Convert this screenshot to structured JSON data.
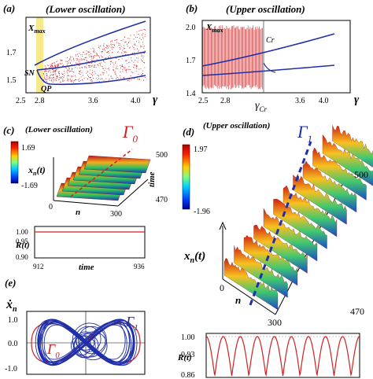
{
  "panel_a": {
    "label": "(a)",
    "title": "(Lower oscillation)",
    "x_ticks": [
      "2.5",
      "2.8",
      "3.6",
      "4.0"
    ],
    "y_ticks": [
      "1.5",
      "1.7"
    ],
    "ylabel_main": "X",
    "ylabel_sub": "max",
    "xlabel": "γ",
    "annot_sn": "SN",
    "annot_qp": "QP",
    "colors": {
      "stable": "#1f2fa8",
      "chaotic": "#d02020",
      "highlight": "#f7e98a"
    }
  },
  "panel_b": {
    "label": "(b)",
    "title": "(Upper oscillation)",
    "x_ticks": [
      "2.5",
      "2.8",
      "3.6",
      "4.0"
    ],
    "y_ticks": [
      "1.4",
      "1.7",
      "2.0"
    ],
    "ylabel_main": "X",
    "ylabel_sub": "max",
    "xlabel": "γ",
    "annot_cr": "Cr",
    "gamma_cr_main": "γ",
    "gamma_cr_sub": "Cr"
  },
  "panel_c": {
    "label": "(c)",
    "title": "(Lower oscillation)",
    "gamma_main": "Γ",
    "gamma_sub": "0",
    "colorbar_max": "1.69",
    "colorbar_min": "-1.69",
    "zlabel": "x",
    "zlabel_sub": "n",
    "zlabel_rest": "(t)",
    "n_label": "n",
    "time_label": "time",
    "tick_0": "0",
    "tick_300": "300",
    "tick_500": "500",
    "tick_470": "470",
    "r_label": "R(t)",
    "r_yticks": [
      "1.00",
      "0.95",
      "0.90"
    ],
    "r_xticks": [
      "912",
      "936"
    ],
    "r_xlabel": "time"
  },
  "panel_d": {
    "label": "(d)",
    "title": "(Upper oscillation)",
    "gamma_main": "Γ",
    "gamma_sub": "1",
    "colorbar_max": "1.97",
    "colorbar_min": "-1.96",
    "zlabel": "x",
    "zlabel_sub": "n",
    "zlabel_rest": "(t)",
    "n_label": "n",
    "tick_0": "0",
    "tick_300": "300",
    "tick_470": "470",
    "tick_500": "500",
    "r_label": "R(t)",
    "r_yticks": [
      "1.00",
      "0.93",
      "0.86"
    ]
  },
  "panel_e": {
    "label": "(e)",
    "ylabel_main": "ẋ",
    "ylabel_sub": "n",
    "y_ticks": [
      "1.0",
      "0.0",
      "-1.0"
    ],
    "gamma1_main": "Γ",
    "gamma1_sub": "1",
    "gamma0_main": "Γ",
    "gamma0_sub": "0"
  }
}
